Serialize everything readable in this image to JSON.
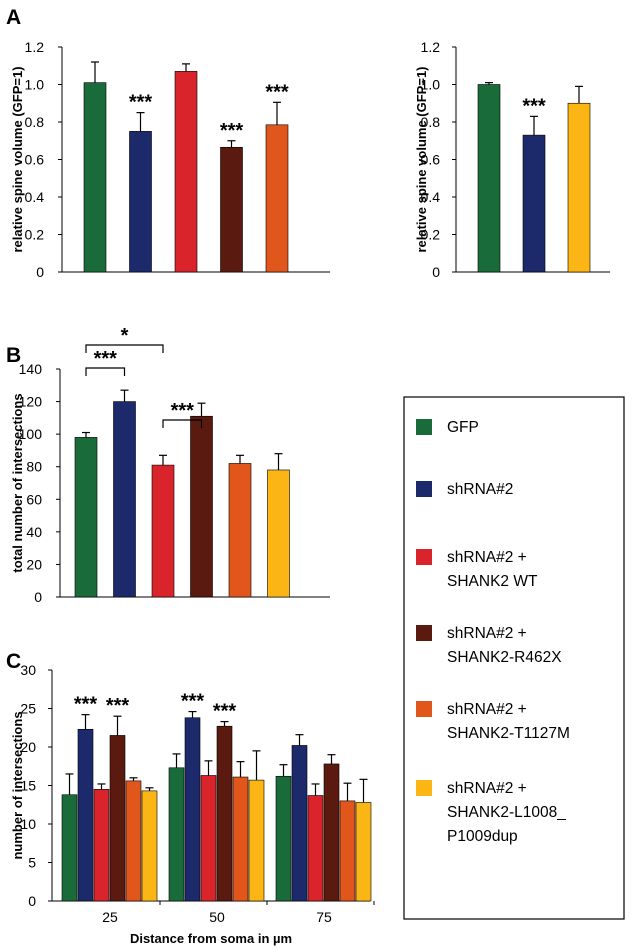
{
  "colors": {
    "gfp": "#1a6b3a",
    "shrna2": "#1c2a6b",
    "wt": "#d8242a",
    "r462x": "#5a1a10",
    "t1127m": "#e0561b",
    "l1008": "#fbb615"
  },
  "chart_data": [
    {
      "id": "A-left",
      "panel": "A",
      "type": "bar",
      "ylabel": "relative spine volume (GFP=1)",
      "ylim": [
        0,
        1.2
      ],
      "yticks": [
        "0",
        "0.2",
        "0.4",
        "0.6",
        "0.8",
        "1.0",
        "1.2"
      ],
      "categories": [
        "GFP",
        "shRNA#2",
        "shRNA#2 + SHANK2 WT",
        "shRNA#2 + SHANK2-R462X",
        "shRNA#2 + SHANK2-T1127M"
      ],
      "values": [
        1.01,
        0.75,
        1.07,
        0.665,
        0.785
      ],
      "errors": [
        0.11,
        0.1,
        0.04,
        0.035,
        0.12
      ],
      "color_keys": [
        "gfp",
        "shrna2",
        "wt",
        "r462x",
        "t1127m"
      ],
      "annotations": [
        "",
        "***",
        "",
        "***",
        "***"
      ]
    },
    {
      "id": "A-right",
      "panel": "",
      "type": "bar",
      "ylabel": "relative spine volume (GFP=1)",
      "ylim": [
        0,
        1.2
      ],
      "yticks": [
        "0",
        "0.2",
        "0.4",
        "0.6",
        "0.8",
        "1.0",
        "1.2"
      ],
      "categories": [
        "GFP",
        "shRNA#2",
        "shRNA#2 + SHANK2-L1008_P1009dup"
      ],
      "values": [
        1.0,
        0.73,
        0.9
      ],
      "errors": [
        0.01,
        0.1,
        0.09
      ],
      "color_keys": [
        "gfp",
        "shrna2",
        "l1008"
      ],
      "annotations": [
        "",
        "***",
        ""
      ]
    },
    {
      "id": "B",
      "panel": "B",
      "type": "bar",
      "ylabel": "total number of intersections",
      "ylim": [
        0,
        140
      ],
      "yticks": [
        "0",
        "20",
        "40",
        "60",
        "80",
        "100",
        "120",
        "140"
      ],
      "categories": [
        "GFP",
        "shRNA#2",
        "shRNA#2 + SHANK2 WT",
        "shRNA#2 + SHANK2-R462X",
        "shRNA#2 + SHANK2-T1127M",
        "shRNA#2 + SHANK2-L1008_P1009dup"
      ],
      "values": [
        98,
        120,
        81,
        111,
        82,
        78
      ],
      "errors": [
        3,
        7,
        6,
        8,
        5,
        10
      ],
      "color_keys": [
        "gfp",
        "shrna2",
        "wt",
        "r462x",
        "t1127m",
        "l1008"
      ],
      "brackets": [
        {
          "from": 0,
          "to": 2,
          "label": "*"
        },
        {
          "from": 0,
          "to": 1,
          "label": "***"
        },
        {
          "from": 2,
          "to": 3,
          "label": "***"
        }
      ]
    },
    {
      "id": "C",
      "panel": "C",
      "type": "bar",
      "ylabel": "number of intersections",
      "xlabel": "Distance from soma in µm",
      "ylim": [
        0,
        30
      ],
      "yticks": [
        "0",
        "5",
        "10",
        "15",
        "20",
        "25",
        "30"
      ],
      "categories": [
        "25",
        "50",
        "75"
      ],
      "series": [
        {
          "name": "GFP",
          "color_key": "gfp",
          "values": [
            13.8,
            17.3,
            16.2
          ],
          "errors": [
            2.7,
            1.8,
            1.5
          ]
        },
        {
          "name": "shRNA#2",
          "color_key": "shrna2",
          "values": [
            22.3,
            23.8,
            20.2
          ],
          "errors": [
            1.9,
            0.8,
            1.4
          ]
        },
        {
          "name": "shRNA#2 + SHANK2 WT",
          "color_key": "wt",
          "values": [
            14.5,
            16.3,
            13.7
          ],
          "errors": [
            0.7,
            1.9,
            1.5
          ]
        },
        {
          "name": "shRNA#2 + SHANK2-R462X",
          "color_key": "r462x",
          "values": [
            21.5,
            22.7,
            17.8
          ],
          "errors": [
            2.5,
            0.6,
            1.2
          ]
        },
        {
          "name": "shRNA#2 + SHANK2-T1127M",
          "color_key": "t1127m",
          "values": [
            15.6,
            16.1,
            13.0
          ],
          "errors": [
            0.4,
            2.0,
            2.3
          ]
        },
        {
          "name": "shRNA#2 + SHANK2-L1008_P1009dup",
          "color_key": "l1008",
          "values": [
            14.3,
            15.7,
            12.8
          ],
          "errors": [
            0.4,
            3.8,
            3.0
          ]
        }
      ],
      "annotations": [
        {
          "category": 0,
          "series": 1,
          "label": "***"
        },
        {
          "category": 0,
          "series": 3,
          "label": "***"
        },
        {
          "category": 1,
          "series": 1,
          "label": "***"
        },
        {
          "category": 1,
          "series": 3,
          "label": "***"
        }
      ]
    }
  ],
  "legend": {
    "items": [
      {
        "color_key": "gfp",
        "lines": [
          "GFP"
        ]
      },
      {
        "color_key": "shrna2",
        "lines": [
          "shRNA#2"
        ]
      },
      {
        "color_key": "wt",
        "lines": [
          "shRNA#2 +",
          "SHANK2 WT"
        ]
      },
      {
        "color_key": "r462x",
        "lines": [
          "shRNA#2 +",
          "SHANK2-R462X"
        ]
      },
      {
        "color_key": "t1127m",
        "lines": [
          "shRNA#2 +",
          "SHANK2-T1127M"
        ]
      },
      {
        "color_key": "l1008",
        "lines": [
          "shRNA#2 +",
          "SHANK2-L1008_",
          "P1009dup"
        ]
      }
    ]
  }
}
